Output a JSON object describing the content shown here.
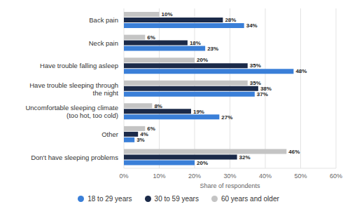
{
  "chart_data": {
    "type": "bar",
    "orientation": "horizontal",
    "categories": [
      "Back pain",
      "Neck pain",
      "Have trouble falling asleep",
      "Have trouble sleeping through the night",
      "Uncomfortable sleeping climate (too hot, too cold)",
      "Other",
      "Don't have sleeping problems"
    ],
    "series": [
      {
        "name": "18 to 29 years",
        "color": "#3a7fd8",
        "values": [
          34,
          23,
          48,
          37,
          27,
          3,
          20
        ],
        "value_labels": [
          "34%",
          "23%",
          "48%",
          "37%",
          "27%",
          "3%",
          "20%"
        ]
      },
      {
        "name": "30 to 59 years",
        "color": "#1b2a49",
        "values": [
          28,
          18,
          35,
          38,
          19,
          4,
          32
        ],
        "value_labels": [
          "28%",
          "18%",
          "35%",
          "38%",
          "19%",
          "4%",
          "32%"
        ]
      },
      {
        "name": "60 years and older",
        "color": "#c4c4c4",
        "values": [
          10,
          6,
          20,
          35,
          8,
          6,
          46
        ],
        "value_labels": [
          "10%",
          "6%",
          "20%",
          "35%",
          "8%",
          "6%",
          "46%"
        ]
      }
    ],
    "xlabel": "Share of respondents",
    "xlim": [
      0,
      60
    ],
    "xticks": [
      {
        "value": 0,
        "label": "0%"
      },
      {
        "value": 10,
        "label": "10%"
      },
      {
        "value": 20,
        "label": "20%"
      },
      {
        "value": 30,
        "label": "30%"
      },
      {
        "value": 40,
        "label": "40%"
      },
      {
        "value": 50,
        "label": "50%"
      },
      {
        "value": 60,
        "label": "60%"
      }
    ],
    "grid": true,
    "legend": "bottom",
    "data_labels": true
  }
}
